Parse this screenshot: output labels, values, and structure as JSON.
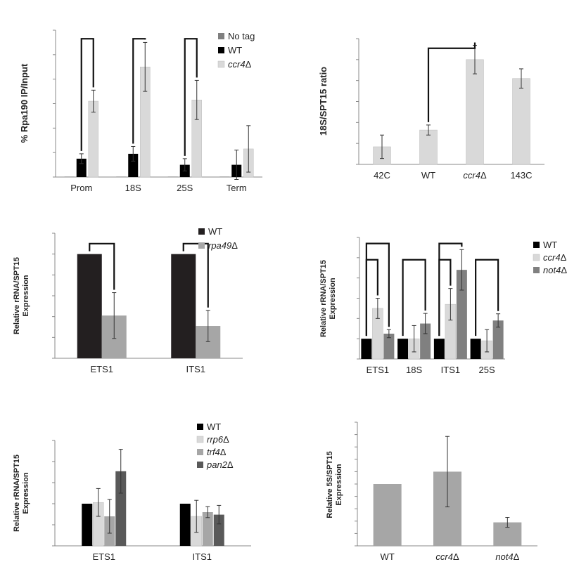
{
  "chart_data": [
    {
      "panel": "A",
      "type": "bar",
      "categories": [
        "Prom",
        "18S",
        "25S",
        "Term"
      ],
      "ylabel": "% Rpa190 IP/Input",
      "ylim": [
        0,
        120
      ],
      "yticks": [
        "0",
        "20",
        "40",
        "60",
        "80",
        "100",
        "120"
      ],
      "series": [
        {
          "name": "No tag",
          "color": "#7f7f7f",
          "values": [
            0.3,
            0.3,
            0.3,
            0.3
          ],
          "errors": [
            0,
            0,
            0,
            0
          ]
        },
        {
          "name": "WT",
          "color": "#000000",
          "values": [
            15,
            19,
            10,
            10
          ],
          "errors": [
            4,
            6,
            5,
            12
          ]
        },
        {
          "name": "ccr4Δ",
          "color": "#d9d9d9",
          "values": [
            62,
            90,
            63,
            23
          ],
          "errors": [
            9,
            20,
            16,
            19
          ]
        }
      ],
      "sig": [
        {
          "label": "***",
          "cat": 0,
          "a": 1,
          "b": 2,
          "ty": 113
        },
        {
          "label": "***",
          "cat": 1,
          "a": 1,
          "b": 2,
          "ty": 113
        },
        {
          "label": "***",
          "cat": 2,
          "a": 1,
          "b": 2,
          "ty": 113
        }
      ]
    },
    {
      "panel": "B",
      "type": "bar",
      "categories": [
        "42C",
        "WT",
        "ccr4Δ",
        "143C"
      ],
      "ylabel": "18S/SPT15 ratio",
      "ylim": [
        0,
        300
      ],
      "yticks": [
        "0",
        "50",
        "100",
        "150",
        "200",
        "250",
        "300"
      ],
      "series": [
        {
          "name": "",
          "color": "#d9d9d9",
          "values": [
            42,
            82,
            250,
            205
          ],
          "errors": [
            28,
            12,
            34,
            23
          ]
        }
      ],
      "sig": [
        {
          "label": "***",
          "from": 1,
          "to": 2,
          "ty": 277
        }
      ]
    },
    {
      "panel": "C",
      "type": "bar",
      "categories": [
        "ETS1",
        "ITS1"
      ],
      "ylabel": "Relative rRNA/SPT15 Expression",
      "ylim": [
        0,
        1.2
      ],
      "yticks": [
        "0",
        "0.2",
        "0.4",
        "0.6",
        "0.8",
        "1",
        "1.2"
      ],
      "series": [
        {
          "name": "WT",
          "color": "#231f20",
          "values": [
            1,
            1
          ],
          "errors": [
            0,
            0
          ]
        },
        {
          "name": "rpa49Δ",
          "color": "#a6a6a6",
          "values": [
            0.41,
            0.31
          ],
          "errors": [
            0.22,
            0.15
          ]
        }
      ],
      "sig": [
        {
          "label": "*",
          "cat": 0,
          "a": 0,
          "b": 1,
          "ty": 1.1
        },
        {
          "label": "*",
          "cat": 1,
          "a": 0,
          "b": 1,
          "ty": 1.1
        }
      ]
    },
    {
      "panel": "D",
      "type": "bar",
      "categories": [
        "ETS1",
        "18S",
        "ITS1",
        "25S"
      ],
      "ylabel": "Relative rRNA/SPT15 Expression",
      "ylim": [
        0,
        6
      ],
      "yticks": [
        "0",
        "1",
        "2",
        "3",
        "4",
        "5",
        "6"
      ],
      "series": [
        {
          "name": "WT",
          "color": "#000000",
          "values": [
            1,
            1,
            1,
            1
          ],
          "errors": [
            0,
            0,
            0,
            0
          ]
        },
        {
          "name": "ccr4Δ",
          "color": "#d9d9d9",
          "values": [
            2.5,
            1.0,
            2.7,
            0.9
          ],
          "errors": [
            0.5,
            0.65,
            0.78,
            0.55
          ]
        },
        {
          "name": "not4Δ",
          "color": "#808080",
          "values": [
            1.25,
            1.75,
            4.4,
            1.9
          ],
          "errors": [
            0.2,
            0.5,
            1.0,
            0.33
          ]
        }
      ],
      "sig": [
        {
          "label": "*",
          "cat": 0,
          "a": 0,
          "b": 2,
          "ty": 5.7
        },
        {
          "label": "***",
          "cat": 0,
          "a": 0,
          "b": 1,
          "ty": 4.9
        },
        {
          "label": "*",
          "cat": 1,
          "a": 0,
          "b": 2,
          "ty": 4.9
        },
        {
          "label": "**",
          "cat": 2,
          "a": 0,
          "b": 2,
          "ty": 5.7
        },
        {
          "label": "**",
          "cat": 2,
          "a": 0,
          "b": 1,
          "ty": 4.9
        },
        {
          "label": "***",
          "cat": 3,
          "a": 0,
          "b": 2,
          "ty": 4.9
        }
      ]
    },
    {
      "panel": "E",
      "type": "bar",
      "categories": [
        "ETS1",
        "ITS1"
      ],
      "ylabel": "Relative rRNA/SPT15 Expression",
      "ylim": [
        0,
        2.5
      ],
      "yticks": [
        "0",
        "0.5",
        "1",
        "1.5",
        "2",
        "2.5"
      ],
      "series": [
        {
          "name": "WT",
          "color": "#000000",
          "values": [
            1,
            1
          ],
          "errors": [
            0,
            0
          ]
        },
        {
          "name": "rrp6Δ",
          "color": "#d9d9d9",
          "values": [
            1.03,
            0.7
          ],
          "errors": [
            0.33,
            0.38
          ]
        },
        {
          "name": "trf4Δ",
          "color": "#a6a6a6",
          "values": [
            0.7,
            0.8
          ],
          "errors": [
            0.4,
            0.13
          ]
        },
        {
          "name": "pan2Δ",
          "color": "#595959",
          "values": [
            1.77,
            0.74
          ],
          "errors": [
            0.52,
            0.22
          ]
        }
      ],
      "sig": []
    },
    {
      "panel": "F",
      "type": "bar",
      "categories": [
        "WT",
        "ccr4Δ",
        "not4Δ"
      ],
      "ylabel": "Relative 5S/SPT15 Expression",
      "ylim": [
        0,
        2
      ],
      "yticks": [
        "0",
        "0.2",
        "0.4",
        "0.6",
        "0.8",
        "1",
        "1.2",
        "1.4",
        "1.6",
        "1.8",
        "2"
      ],
      "series": [
        {
          "name": "",
          "color": "#a6a6a6",
          "values": [
            1,
            1.2,
            0.38
          ],
          "errors": [
            0,
            0.57,
            0.08
          ]
        }
      ],
      "sig": [
        {
          "label": "***",
          "over": 2,
          "ty": 0.63
        }
      ]
    }
  ]
}
